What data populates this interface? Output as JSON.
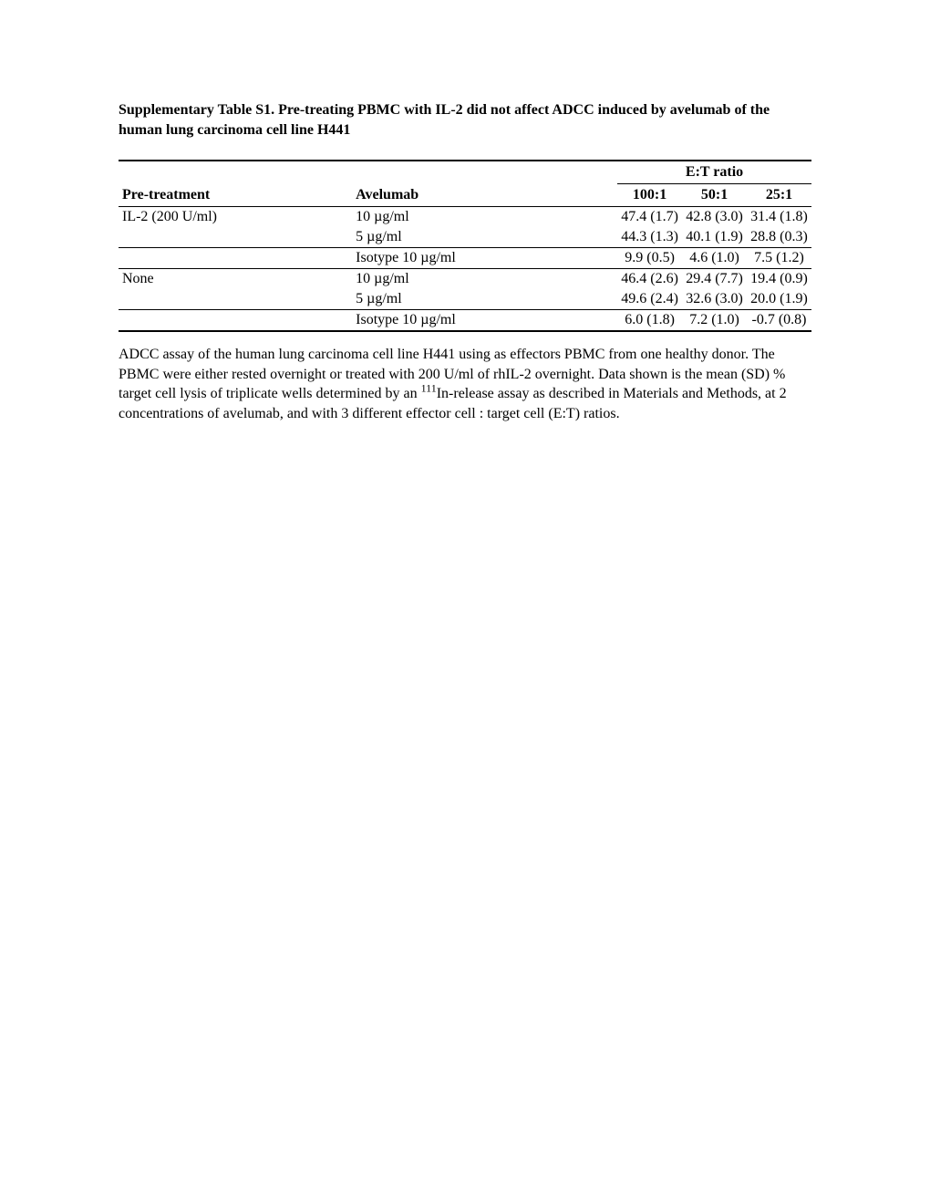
{
  "title": "Supplementary Table S1. Pre-treating PBMC with IL-2 did not affect ADCC induced by avelumab of the human lung carcinoma cell line H441",
  "table": {
    "header_group_label": "E:T ratio",
    "columns": {
      "pretreatment": "Pre-treatment",
      "avelumab": "Avelumab",
      "r100": "100:1",
      "r50": "50:1",
      "r25": "25:1"
    },
    "groups": [
      {
        "pretreatment": "IL-2 (200 U/ml)",
        "rows": [
          {
            "avelumab": "10 µg/ml",
            "r100": "47.4 (1.7)",
            "r50": "42.8 (3.0)",
            "r25": "31.4 (1.8)"
          },
          {
            "avelumab": "5 µg/ml",
            "r100": "44.3 (1.3)",
            "r50": "40.1 (1.9)",
            "r25": "28.8 (0.3)"
          },
          {
            "avelumab": "Isotype 10 µg/ml",
            "r100": "9.9 (0.5)",
            "r50": "4.6 (1.0)",
            "r25": "7.5 (1.2)"
          }
        ]
      },
      {
        "pretreatment": "None",
        "rows": [
          {
            "avelumab": "10 µg/ml",
            "r100": "46.4 (2.6)",
            "r50": "29.4 (7.7)",
            "r25": "19.4 (0.9)"
          },
          {
            "avelumab": "5 µg/ml",
            "r100": "49.6 (2.4)",
            "r50": "32.6 (3.0)",
            "r25": "20.0 (1.9)"
          },
          {
            "avelumab": "Isotype 10 µg/ml",
            "r100": "6.0 (1.8)",
            "r50": "7.2 (1.0)",
            "r25": "-0.7 (0.8)"
          }
        ]
      }
    ]
  },
  "caption_parts": {
    "p1": "ADCC assay of the human lung carcinoma cell line H441 using as effectors PBMC from one healthy donor. The PBMC were either rested overnight or treated with 200 U/ml of rhIL-2 overnight. Data shown is the mean (SD) % target cell lysis of triplicate wells determined by an ",
    "sup": "111",
    "p2": "In-release assay as described in Materials and Methods, at 2 concentrations of avelumab, and with 3 different effector cell : target cell (E:T) ratios."
  }
}
